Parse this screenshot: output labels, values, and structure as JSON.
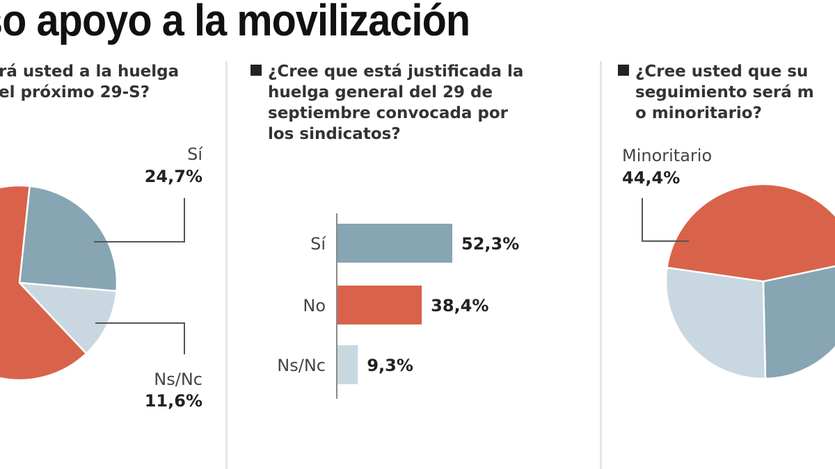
{
  "title": "so apoyo a la movilización",
  "colors": {
    "si": "#87a5b3",
    "no": "#d9634a",
    "nsnc": "#c9d8e0",
    "leader": "#555555",
    "axis": "#888888"
  },
  "panels": [
    {
      "question_lines": [
        "rá usted a la huelga",
        "el próximo 29-S?"
      ]
    },
    {
      "question_lines": [
        "¿Cree que está justificada la",
        "huelga general del 29 de",
        "septiembre convocada por",
        "los sindicatos?"
      ]
    },
    {
      "question_lines": [
        "¿Cree usted que su",
        "seguimiento será m",
        "o minoritario?"
      ]
    }
  ],
  "chart_data": [
    {
      "type": "pie",
      "title": "¿...rá usted a la huelga el próximo 29-S?",
      "slices": [
        {
          "label": "Sí",
          "value": 24.7,
          "display": "24,7%",
          "color_key": "si"
        },
        {
          "label": "Ns/Nc",
          "value": 11.6,
          "display": "11,6%",
          "color_key": "nsnc"
        },
        {
          "label": "",
          "value": 63.7,
          "display": "",
          "color_key": "no",
          "note": "remainder, label not visible"
        }
      ],
      "start_angle_deg": -84
    },
    {
      "type": "bar",
      "orientation": "horizontal",
      "title": "¿Cree que está justificada la huelga general del 29 de septiembre convocada por los sindicatos?",
      "categories": [
        "Sí",
        "No",
        "Ns/Nc"
      ],
      "values": [
        52.3,
        38.4,
        9.3
      ],
      "value_labels": [
        "52,3%",
        "38,4%",
        "9,3%"
      ],
      "color_keys": [
        "si",
        "no",
        "nsnc"
      ],
      "xlim": [
        0,
        100
      ],
      "grid": false
    },
    {
      "type": "pie",
      "title": "¿Cree usted que su seguimiento será m... o minoritario?",
      "slices": [
        {
          "label": "",
          "value": 28.0,
          "display": "",
          "color_key": "si",
          "note": "estimated, label not visible"
        },
        {
          "label": "",
          "value": 27.6,
          "display": "",
          "color_key": "nsnc",
          "note": "estimated, label not visible"
        },
        {
          "label": "Minoritario",
          "value": 44.4,
          "display": "44,4%",
          "color_key": "no"
        }
      ],
      "start_angle_deg": -12
    }
  ],
  "labels": {
    "pie1_si_label": "Sí",
    "pie1_si_value": "24,7%",
    "pie1_ns_label": "Ns/Nc",
    "pie1_ns_value": "11,6%",
    "pie3_min_label": "Minoritario",
    "pie3_min_value": "44,4%"
  }
}
